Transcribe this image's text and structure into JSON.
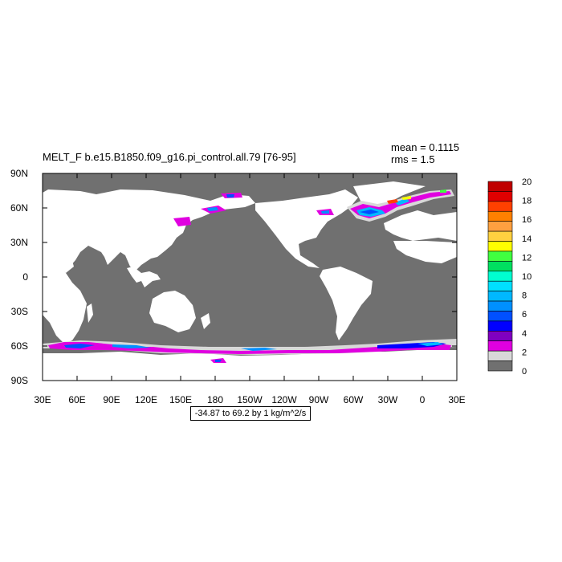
{
  "chart_data": {
    "type": "heatmap",
    "title": "MELT_F b.e15.B1850.f09_g16.pi_control.all.79 [76-95]",
    "stats": {
      "mean": "mean = 0.1115",
      "rms": "rms = 1.5"
    },
    "range_label": "-34.87 to 69.2 by 1 kg/m^2/s",
    "x_ticks": [
      {
        "lon": 30,
        "label": "30E"
      },
      {
        "lon": 60,
        "label": "60E"
      },
      {
        "lon": 90,
        "label": "90E"
      },
      {
        "lon": 120,
        "label": "120E"
      },
      {
        "lon": 150,
        "label": "150E"
      },
      {
        "lon": 180,
        "label": "180"
      },
      {
        "lon": 210,
        "label": "150W"
      },
      {
        "lon": 240,
        "label": "120W"
      },
      {
        "lon": 270,
        "label": "90W"
      },
      {
        "lon": 300,
        "label": "60W"
      },
      {
        "lon": 330,
        "label": "30W"
      },
      {
        "lon": 360,
        "label": "0"
      },
      {
        "lon": 390,
        "label": "30E"
      }
    ],
    "y_ticks": [
      {
        "lat": 90,
        "label": "90N"
      },
      {
        "lat": 60,
        "label": "60N"
      },
      {
        "lat": 30,
        "label": "30N"
      },
      {
        "lat": 0,
        "label": "0"
      },
      {
        "lat": -30,
        "label": "30S"
      },
      {
        "lat": -60,
        "label": "60S"
      },
      {
        "lat": -90,
        "label": "90S"
      }
    ],
    "xlim": [
      30,
      390
    ],
    "ylim": [
      -90,
      90
    ],
    "colorbar": {
      "labels": [
        "20",
        "18",
        "16",
        "14",
        "12",
        "10",
        "8",
        "6",
        "4",
        "2",
        "0"
      ],
      "colors_top_to_bottom": [
        "#c00000",
        "#e00000",
        "#ff4000",
        "#ff8000",
        "#ffa040",
        "#ffd040",
        "#ffff00",
        "#40ff40",
        "#00e060",
        "#00ffd0",
        "#00e0ff",
        "#00b8ff",
        "#0090ff",
        "#0050ff",
        "#0000ff",
        "#8000c0",
        "#e000e0",
        "#d8d8d8",
        "#707070"
      ]
    },
    "land_color": "#ffffff",
    "ocean_fill_color": "#707070"
  }
}
